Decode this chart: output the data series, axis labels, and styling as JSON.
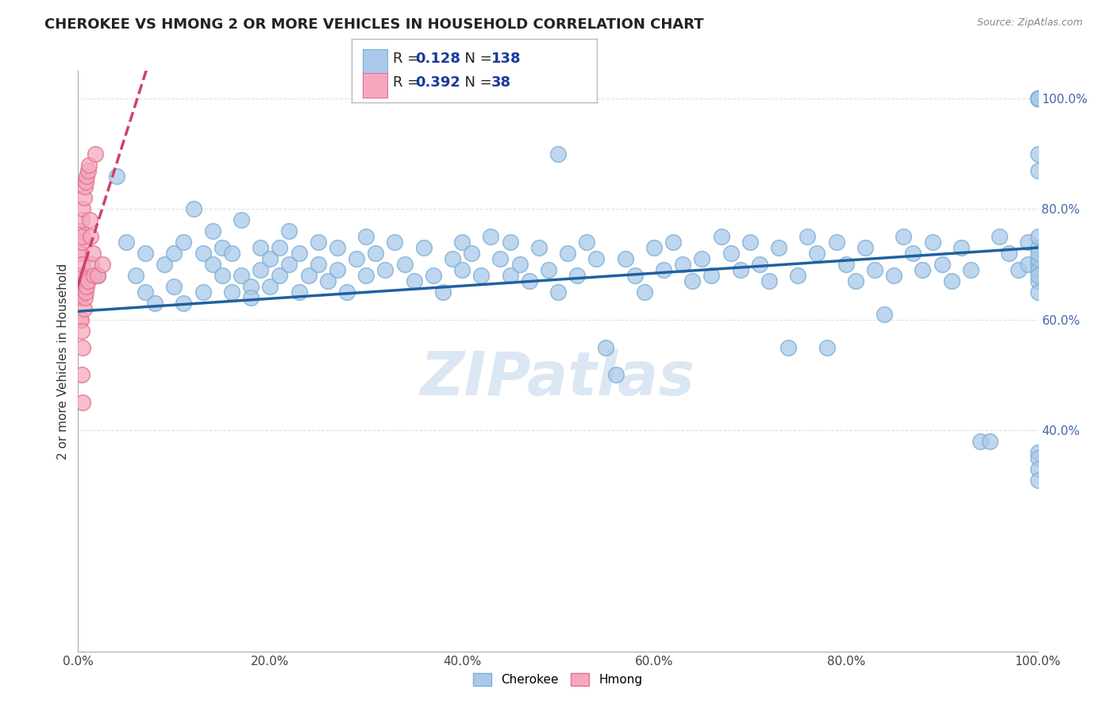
{
  "title": "CHEROKEE VS HMONG 2 OR MORE VEHICLES IN HOUSEHOLD CORRELATION CHART",
  "source": "Source: ZipAtlas.com",
  "ylabel": "2 or more Vehicles in Household",
  "xlim": [
    0.0,
    1.0
  ],
  "ylim": [
    0.0,
    1.05
  ],
  "xtick_labels": [
    "0.0%",
    "20.0%",
    "40.0%",
    "60.0%",
    "80.0%",
    "100.0%"
  ],
  "xtick_vals": [
    0.0,
    0.2,
    0.4,
    0.6,
    0.8,
    1.0
  ],
  "ytick_labels_right": [
    "40.0%",
    "60.0%",
    "80.0%",
    "100.0%"
  ],
  "ytick_vals_right": [
    0.4,
    0.6,
    0.8,
    1.0
  ],
  "cherokee_color": "#aac9ea",
  "cherokee_edge_color": "#7aafd4",
  "hmong_color": "#f5a8bc",
  "hmong_edge_color": "#e07090",
  "cherokee_line_color": "#2060a0",
  "hmong_line_color": "#d04070",
  "background_color": "#ffffff",
  "grid_color": "#e0e0e0",
  "R_cherokee": 0.128,
  "N_cherokee": 138,
  "R_hmong": 0.392,
  "N_hmong": 38,
  "legend_text_color": "#1a3a9a",
  "watermark_color": "#c5d8ee",
  "cherokee_x": [
    0.02,
    0.04,
    0.05,
    0.06,
    0.07,
    0.07,
    0.08,
    0.09,
    0.1,
    0.1,
    0.11,
    0.11,
    0.12,
    0.13,
    0.13,
    0.14,
    0.14,
    0.15,
    0.15,
    0.16,
    0.16,
    0.17,
    0.17,
    0.18,
    0.18,
    0.19,
    0.19,
    0.2,
    0.2,
    0.21,
    0.21,
    0.22,
    0.22,
    0.23,
    0.23,
    0.24,
    0.25,
    0.25,
    0.26,
    0.27,
    0.27,
    0.28,
    0.29,
    0.3,
    0.3,
    0.31,
    0.32,
    0.33,
    0.34,
    0.35,
    0.36,
    0.37,
    0.38,
    0.39,
    0.4,
    0.4,
    0.41,
    0.42,
    0.43,
    0.44,
    0.45,
    0.45,
    0.46,
    0.47,
    0.48,
    0.49,
    0.5,
    0.5,
    0.51,
    0.52,
    0.53,
    0.54,
    0.55,
    0.56,
    0.57,
    0.58,
    0.59,
    0.6,
    0.61,
    0.62,
    0.63,
    0.64,
    0.65,
    0.66,
    0.67,
    0.68,
    0.69,
    0.7,
    0.71,
    0.72,
    0.73,
    0.74,
    0.75,
    0.76,
    0.77,
    0.78,
    0.79,
    0.8,
    0.81,
    0.82,
    0.83,
    0.84,
    0.85,
    0.86,
    0.87,
    0.88,
    0.89,
    0.9,
    0.91,
    0.92,
    0.93,
    0.94,
    0.95,
    0.96,
    0.97,
    0.98,
    0.99,
    0.99,
    1.0,
    1.0,
    1.0,
    1.0,
    1.0,
    1.0,
    1.0,
    1.0,
    1.0,
    1.0,
    1.0,
    1.0,
    1.0,
    1.0,
    1.0,
    1.0,
    1.0,
    1.0,
    1.0,
    1.0
  ],
  "cherokee_y": [
    0.68,
    0.86,
    0.74,
    0.68,
    0.72,
    0.65,
    0.63,
    0.7,
    0.66,
    0.72,
    0.74,
    0.63,
    0.8,
    0.72,
    0.65,
    0.76,
    0.7,
    0.68,
    0.73,
    0.65,
    0.72,
    0.78,
    0.68,
    0.66,
    0.64,
    0.69,
    0.73,
    0.71,
    0.66,
    0.73,
    0.68,
    0.7,
    0.76,
    0.65,
    0.72,
    0.68,
    0.74,
    0.7,
    0.67,
    0.73,
    0.69,
    0.65,
    0.71,
    0.68,
    0.75,
    0.72,
    0.69,
    0.74,
    0.7,
    0.67,
    0.73,
    0.68,
    0.65,
    0.71,
    0.74,
    0.69,
    0.72,
    0.68,
    0.75,
    0.71,
    0.68,
    0.74,
    0.7,
    0.67,
    0.73,
    0.69,
    0.65,
    0.9,
    0.72,
    0.68,
    0.74,
    0.71,
    0.55,
    0.5,
    0.71,
    0.68,
    0.65,
    0.73,
    0.69,
    0.74,
    0.7,
    0.67,
    0.71,
    0.68,
    0.75,
    0.72,
    0.69,
    0.74,
    0.7,
    0.67,
    0.73,
    0.55,
    0.68,
    0.75,
    0.72,
    0.55,
    0.74,
    0.7,
    0.67,
    0.73,
    0.69,
    0.61,
    0.68,
    0.75,
    0.72,
    0.69,
    0.74,
    0.7,
    0.67,
    0.73,
    0.69,
    0.38,
    0.38,
    0.75,
    0.72,
    0.69,
    0.74,
    0.7,
    1.0,
    1.0,
    1.0,
    1.0,
    1.0,
    0.9,
    0.87,
    0.7,
    0.67,
    0.36,
    0.35,
    0.33,
    0.31,
    0.73,
    0.69,
    0.65,
    0.71,
    0.68,
    0.75,
    0.72
  ],
  "hmong_x": [
    0.002,
    0.002,
    0.002,
    0.002,
    0.003,
    0.003,
    0.003,
    0.003,
    0.004,
    0.004,
    0.004,
    0.004,
    0.004,
    0.004,
    0.005,
    0.005,
    0.005,
    0.005,
    0.005,
    0.006,
    0.006,
    0.007,
    0.007,
    0.008,
    0.008,
    0.009,
    0.009,
    0.01,
    0.01,
    0.011,
    0.012,
    0.013,
    0.014,
    0.015,
    0.016,
    0.018,
    0.02,
    0.025
  ],
  "hmong_y": [
    0.72,
    0.68,
    0.64,
    0.6,
    0.76,
    0.72,
    0.68,
    0.6,
    0.78,
    0.74,
    0.7,
    0.66,
    0.58,
    0.5,
    0.8,
    0.75,
    0.65,
    0.55,
    0.45,
    0.82,
    0.62,
    0.84,
    0.64,
    0.85,
    0.65,
    0.86,
    0.66,
    0.87,
    0.67,
    0.88,
    0.78,
    0.75,
    0.7,
    0.72,
    0.68,
    0.9,
    0.68,
    0.7
  ]
}
